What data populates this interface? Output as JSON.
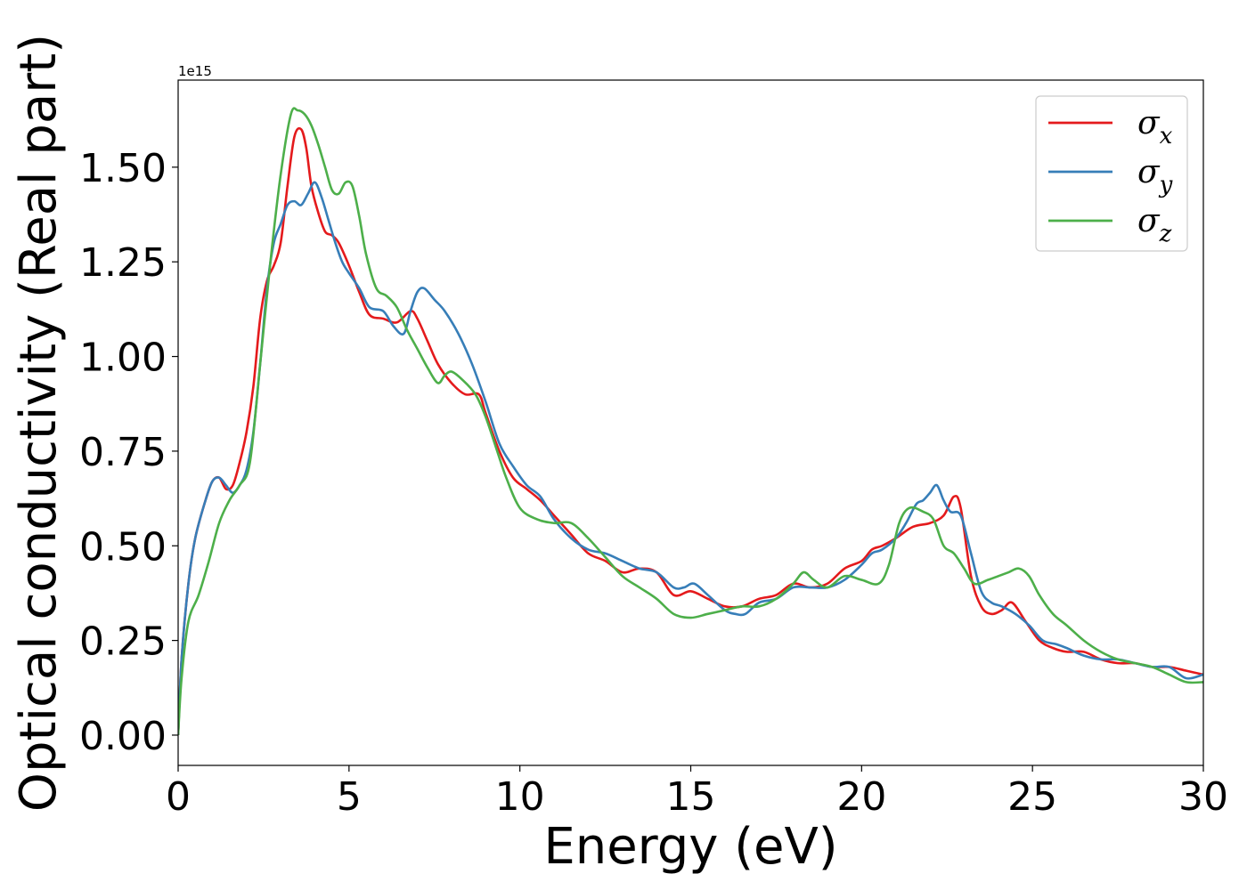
{
  "chart_data": {
    "type": "line",
    "title": "",
    "xlabel": "Energy (eV)",
    "ylabel": "Optical conductivity (Real part)",
    "y_offset_label": "1e15",
    "xlim": [
      0,
      30
    ],
    "ylim": [
      -0.08,
      1.73
    ],
    "x_ticks": [
      0,
      5,
      10,
      15,
      20,
      25,
      30
    ],
    "x_tick_labels": [
      "0",
      "5",
      "10",
      "15",
      "20",
      "25",
      "30"
    ],
    "y_ticks": [
      0.0,
      0.25,
      0.5,
      0.75,
      1.0,
      1.25,
      1.5
    ],
    "y_tick_labels": [
      "0.00",
      "0.25",
      "0.50",
      "0.75",
      "1.00",
      "1.25",
      "1.50"
    ],
    "grid": false,
    "legend_position": "top-right",
    "series": [
      {
        "name": "σx",
        "base": "σ",
        "sub": "x",
        "color": "#e41a1c",
        "x": [
          0,
          0.1,
          0.3,
          0.5,
          0.8,
          1.0,
          1.2,
          1.4,
          1.6,
          1.8,
          2.0,
          2.2,
          2.4,
          2.6,
          2.8,
          3.0,
          3.2,
          3.4,
          3.6,
          3.75,
          3.9,
          4.1,
          4.3,
          4.5,
          4.7,
          5.0,
          5.3,
          5.6,
          6.0,
          6.4,
          6.8,
          7.0,
          7.3,
          7.6,
          8.0,
          8.4,
          8.8,
          9.0,
          9.4,
          9.8,
          10.2,
          10.6,
          11.0,
          11.5,
          12.0,
          12.5,
          13.0,
          13.5,
          14.0,
          14.5,
          15.0,
          15.5,
          16.0,
          16.5,
          17.0,
          17.5,
          18.0,
          18.5,
          19.0,
          19.5,
          20.0,
          20.3,
          20.6,
          21.0,
          21.5,
          22.0,
          22.4,
          22.7,
          22.9,
          23.2,
          23.5,
          23.8,
          24.1,
          24.4,
          24.8,
          25.2,
          25.6,
          26.0,
          26.5,
          27.0,
          27.5,
          28.0,
          28.5,
          29.0,
          29.5,
          30.0
        ],
        "y": [
          0.0,
          0.2,
          0.4,
          0.52,
          0.62,
          0.67,
          0.68,
          0.65,
          0.66,
          0.72,
          0.8,
          0.92,
          1.1,
          1.2,
          1.24,
          1.3,
          1.45,
          1.58,
          1.6,
          1.55,
          1.45,
          1.38,
          1.33,
          1.32,
          1.3,
          1.24,
          1.17,
          1.11,
          1.1,
          1.09,
          1.12,
          1.1,
          1.04,
          0.98,
          0.93,
          0.9,
          0.9,
          0.85,
          0.75,
          0.68,
          0.65,
          0.62,
          0.58,
          0.53,
          0.48,
          0.46,
          0.43,
          0.44,
          0.43,
          0.37,
          0.38,
          0.36,
          0.34,
          0.34,
          0.36,
          0.37,
          0.4,
          0.39,
          0.4,
          0.44,
          0.46,
          0.49,
          0.5,
          0.52,
          0.55,
          0.56,
          0.58,
          0.63,
          0.6,
          0.42,
          0.34,
          0.32,
          0.33,
          0.35,
          0.3,
          0.25,
          0.23,
          0.22,
          0.22,
          0.2,
          0.19,
          0.19,
          0.18,
          0.18,
          0.17,
          0.16
        ]
      },
      {
        "name": "σy",
        "base": "σ",
        "sub": "y",
        "color": "#377eb8",
        "x": [
          0,
          0.1,
          0.3,
          0.5,
          0.8,
          1.0,
          1.2,
          1.4,
          1.6,
          1.8,
          2.0,
          2.2,
          2.4,
          2.6,
          2.8,
          3.0,
          3.2,
          3.4,
          3.6,
          3.8,
          4.0,
          4.2,
          4.4,
          4.6,
          4.8,
          5.0,
          5.3,
          5.6,
          6.0,
          6.3,
          6.6,
          6.8,
          7.0,
          7.2,
          7.5,
          7.8,
          8.2,
          8.6,
          9.0,
          9.4,
          9.8,
          10.2,
          10.6,
          11.0,
          11.5,
          12.0,
          12.5,
          13.0,
          13.5,
          14.0,
          14.5,
          14.8,
          15.1,
          15.5,
          16.0,
          16.3,
          16.6,
          17.0,
          17.5,
          18.0,
          18.5,
          19.0,
          19.5,
          20.0,
          20.3,
          20.6,
          21.0,
          21.3,
          21.6,
          21.8,
          22.0,
          22.2,
          22.4,
          22.6,
          22.9,
          23.2,
          23.5,
          23.8,
          24.1,
          24.5,
          24.9,
          25.3,
          25.7,
          26.0,
          26.5,
          27.0,
          27.5,
          28.0,
          28.5,
          29.0,
          29.5,
          30.0
        ],
        "y": [
          0.0,
          0.2,
          0.4,
          0.52,
          0.62,
          0.67,
          0.68,
          0.66,
          0.64,
          0.66,
          0.7,
          0.8,
          0.98,
          1.18,
          1.3,
          1.35,
          1.4,
          1.41,
          1.4,
          1.43,
          1.46,
          1.42,
          1.36,
          1.3,
          1.25,
          1.22,
          1.18,
          1.13,
          1.12,
          1.08,
          1.06,
          1.12,
          1.17,
          1.18,
          1.15,
          1.12,
          1.06,
          0.98,
          0.88,
          0.77,
          0.71,
          0.66,
          0.63,
          0.57,
          0.52,
          0.49,
          0.48,
          0.46,
          0.44,
          0.43,
          0.39,
          0.39,
          0.4,
          0.37,
          0.33,
          0.32,
          0.32,
          0.35,
          0.36,
          0.39,
          0.39,
          0.39,
          0.41,
          0.45,
          0.48,
          0.49,
          0.52,
          0.56,
          0.61,
          0.62,
          0.64,
          0.66,
          0.62,
          0.59,
          0.58,
          0.48,
          0.38,
          0.35,
          0.34,
          0.32,
          0.29,
          0.25,
          0.24,
          0.23,
          0.21,
          0.2,
          0.2,
          0.19,
          0.18,
          0.18,
          0.15,
          0.16
        ]
      },
      {
        "name": "σz",
        "base": "σ",
        "sub": "z",
        "color": "#4daf4a",
        "x": [
          0,
          0.1,
          0.3,
          0.6,
          0.9,
          1.2,
          1.5,
          1.8,
          2.1,
          2.4,
          2.7,
          3.0,
          3.3,
          3.5,
          3.7,
          3.9,
          4.1,
          4.3,
          4.5,
          4.7,
          4.9,
          5.1,
          5.3,
          5.5,
          5.8,
          6.1,
          6.4,
          6.7,
          7.0,
          7.3,
          7.6,
          7.8,
          8.0,
          8.3,
          8.7,
          9.0,
          9.3,
          9.6,
          10.0,
          10.5,
          11.0,
          11.5,
          12.0,
          12.5,
          13.0,
          13.5,
          14.0,
          14.5,
          15.0,
          15.5,
          16.0,
          16.5,
          17.0,
          17.5,
          18.0,
          18.3,
          18.6,
          19.0,
          19.5,
          20.0,
          20.5,
          20.8,
          21.1,
          21.4,
          21.8,
          22.1,
          22.4,
          22.7,
          23.0,
          23.3,
          23.7,
          24.0,
          24.3,
          24.6,
          24.9,
          25.2,
          25.6,
          26.0,
          26.5,
          27.0,
          27.5,
          28.0,
          28.5,
          29.0,
          29.5,
          30.0
        ],
        "y": [
          0.0,
          0.15,
          0.3,
          0.37,
          0.46,
          0.56,
          0.62,
          0.66,
          0.72,
          0.98,
          1.25,
          1.48,
          1.64,
          1.65,
          1.64,
          1.61,
          1.56,
          1.5,
          1.44,
          1.43,
          1.46,
          1.45,
          1.37,
          1.27,
          1.18,
          1.16,
          1.13,
          1.07,
          1.02,
          0.97,
          0.93,
          0.95,
          0.96,
          0.94,
          0.9,
          0.84,
          0.76,
          0.68,
          0.6,
          0.57,
          0.56,
          0.56,
          0.52,
          0.47,
          0.42,
          0.39,
          0.36,
          0.32,
          0.31,
          0.32,
          0.33,
          0.34,
          0.34,
          0.36,
          0.4,
          0.43,
          0.41,
          0.39,
          0.42,
          0.41,
          0.4,
          0.45,
          0.56,
          0.6,
          0.59,
          0.57,
          0.5,
          0.48,
          0.44,
          0.4,
          0.41,
          0.42,
          0.43,
          0.44,
          0.42,
          0.37,
          0.32,
          0.29,
          0.25,
          0.22,
          0.2,
          0.19,
          0.18,
          0.16,
          0.14,
          0.14
        ]
      }
    ]
  }
}
